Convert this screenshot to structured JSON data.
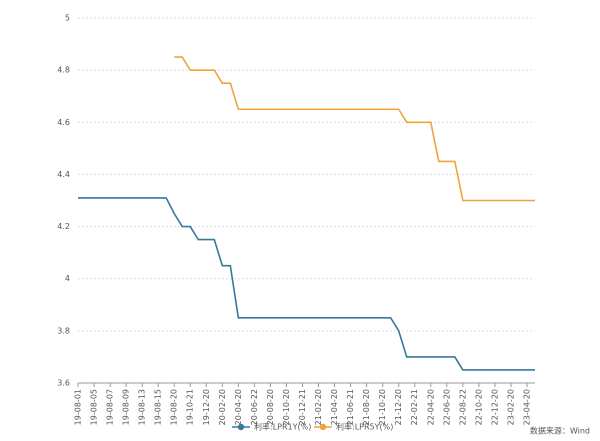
{
  "chart_data": {
    "type": "line",
    "categories": [
      "19-08-01",
      null,
      "19-08-05",
      null,
      "19-08-07",
      null,
      "19-08-09",
      null,
      "19-08-13",
      null,
      "19-08-15",
      null,
      "19-08-20",
      null,
      "19-10-21",
      null,
      "19-12-20",
      null,
      "20-02-20",
      null,
      "20-04-20",
      null,
      "20-06-22",
      null,
      "20-08-20",
      null,
      "20-10-20",
      null,
      "20-12-21",
      null,
      "21-02-20",
      null,
      "21-04-20",
      null,
      "21-06-21",
      null,
      "21-08-20",
      null,
      "21-10-20",
      null,
      "21-12-20",
      null,
      "22-02-21",
      null,
      "22-04-20",
      null,
      "22-06-20",
      null,
      "22-08-22",
      null,
      "22-10-20",
      null,
      "22-12-20",
      null,
      "23-02-20",
      null,
      "23-04-20",
      null
    ],
    "series": [
      {
        "name": "利率:LPR1Y(%)",
        "color": "#35799b",
        "values": [
          4.31,
          4.31,
          4.31,
          4.31,
          4.31,
          4.31,
          4.31,
          4.31,
          4.31,
          4.31,
          4.31,
          4.31,
          4.25,
          4.2,
          4.2,
          4.15,
          4.15,
          4.15,
          4.05,
          4.05,
          3.85,
          3.85,
          3.85,
          3.85,
          3.85,
          3.85,
          3.85,
          3.85,
          3.85,
          3.85,
          3.85,
          3.85,
          3.85,
          3.85,
          3.85,
          3.85,
          3.85,
          3.85,
          3.85,
          3.85,
          3.8,
          3.7,
          3.7,
          3.7,
          3.7,
          3.7,
          3.7,
          3.7,
          3.65,
          3.65,
          3.65,
          3.65,
          3.65,
          3.65,
          3.65,
          3.65,
          3.65,
          3.65
        ]
      },
      {
        "name": "利率:LPR5Y(%)",
        "color": "#f0a33a",
        "values": [
          null,
          null,
          null,
          null,
          null,
          null,
          null,
          null,
          null,
          null,
          null,
          null,
          4.85,
          4.85,
          4.8,
          4.8,
          4.8,
          4.8,
          4.75,
          4.75,
          4.65,
          4.65,
          4.65,
          4.65,
          4.65,
          4.65,
          4.65,
          4.65,
          4.65,
          4.65,
          4.65,
          4.65,
          4.65,
          4.65,
          4.65,
          4.65,
          4.65,
          4.65,
          4.65,
          4.65,
          4.65,
          4.6,
          4.6,
          4.6,
          4.6,
          4.45,
          4.45,
          4.45,
          4.3,
          4.3,
          4.3,
          4.3,
          4.3,
          4.3,
          4.3,
          4.3,
          4.3,
          4.3
        ]
      }
    ],
    "ylim": [
      3.6,
      5
    ],
    "yticks": [
      3.6,
      3.8,
      4,
      4.2,
      4.4,
      4.6,
      4.8,
      5
    ],
    "grid": true,
    "legend": "bottom",
    "source": "数据来源：Wind"
  }
}
